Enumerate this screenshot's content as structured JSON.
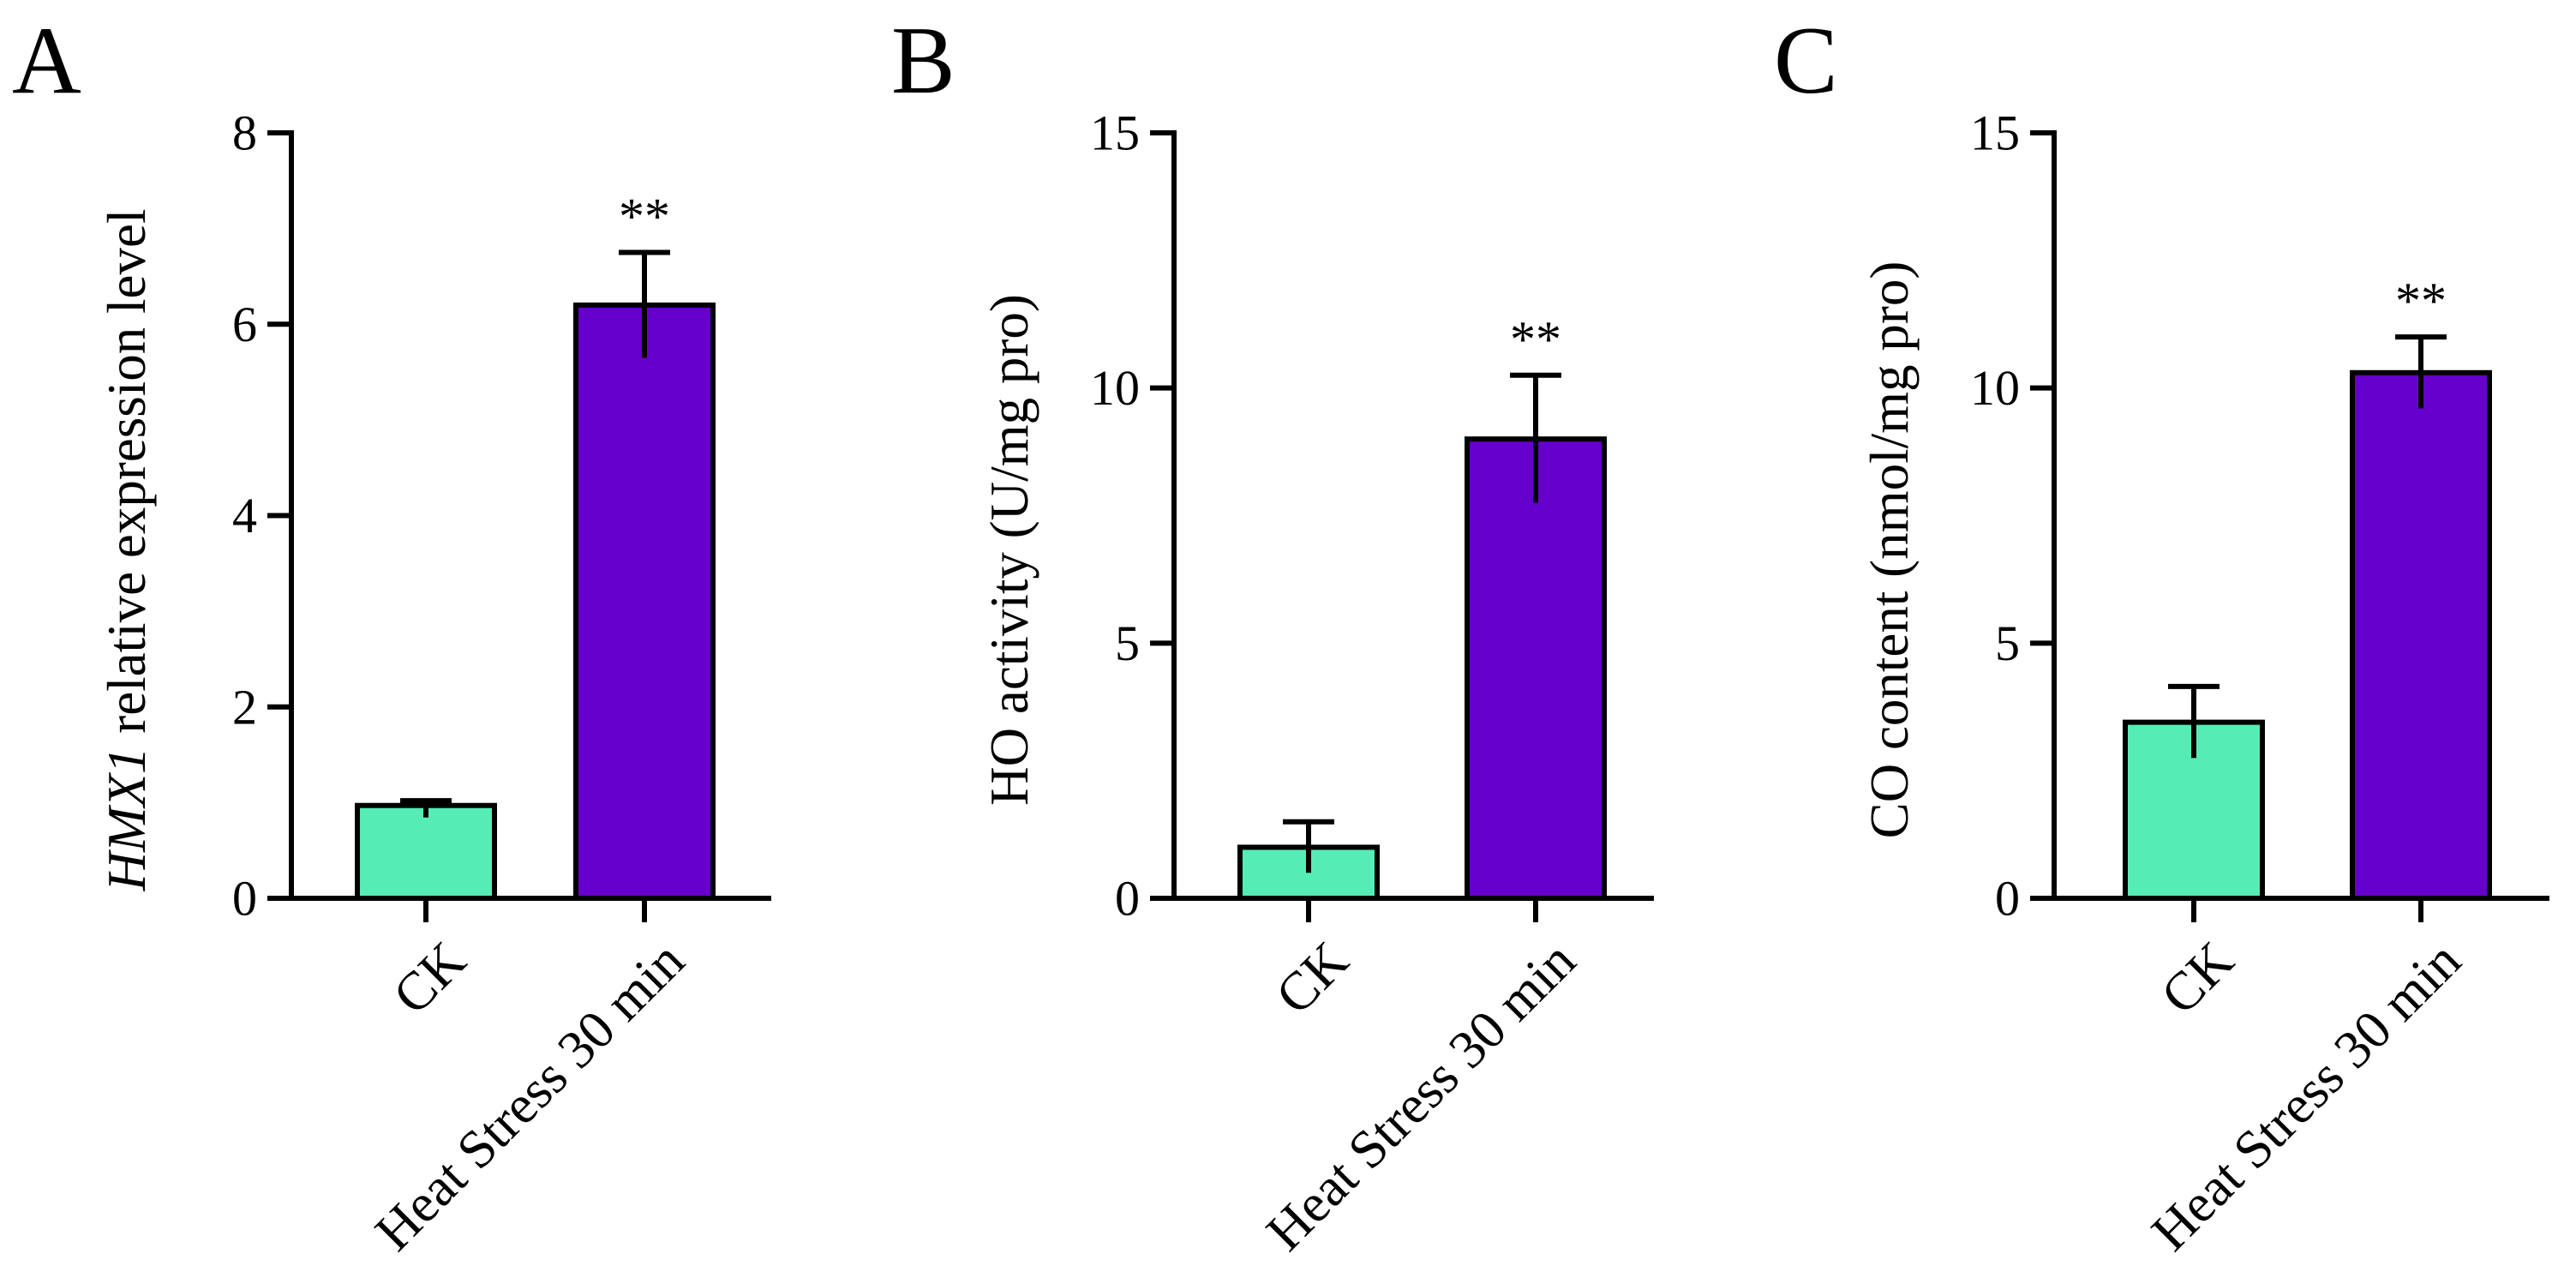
{
  "chart_data": [
    {
      "type": "bar",
      "panel": "A",
      "ylabel_italic": "HMX1",
      "ylabel_rest": " relative expression level",
      "ylim": [
        0,
        8
      ],
      "yticks": [
        0,
        2,
        4,
        6,
        8
      ],
      "categories": [
        "CK",
        "Heat Stress 30 min"
      ],
      "values": [
        0.97,
        6.2
      ],
      "errors": [
        0.05,
        0.55
      ],
      "colors": [
        "#55EDB5",
        "#6600CC"
      ],
      "significance": [
        "",
        "**"
      ]
    },
    {
      "type": "bar",
      "panel": "B",
      "ylabel_italic": "",
      "ylabel_rest": "HO activity (U/mg pro)",
      "ylim": [
        0,
        15
      ],
      "yticks": [
        0,
        5,
        10,
        15
      ],
      "categories": [
        "CK",
        "Heat Stress 30 min"
      ],
      "values": [
        1.0,
        9.0
      ],
      "errors": [
        0.5,
        1.25
      ],
      "colors": [
        "#55EDB5",
        "#6600CC"
      ],
      "significance": [
        "",
        "**"
      ]
    },
    {
      "type": "bar",
      "panel": "C",
      "ylabel_italic": "",
      "ylabel_rest": "CO content (nmol/mg pro)",
      "ylim": [
        0,
        15
      ],
      "yticks": [
        0,
        5,
        10,
        15
      ],
      "categories": [
        "CK",
        "Heat Stress 30 min"
      ],
      "values": [
        3.45,
        10.3
      ],
      "errors": [
        0.7,
        0.7
      ],
      "colors": [
        "#55EDB5",
        "#6600CC"
      ],
      "significance": [
        "",
        "**"
      ]
    }
  ]
}
